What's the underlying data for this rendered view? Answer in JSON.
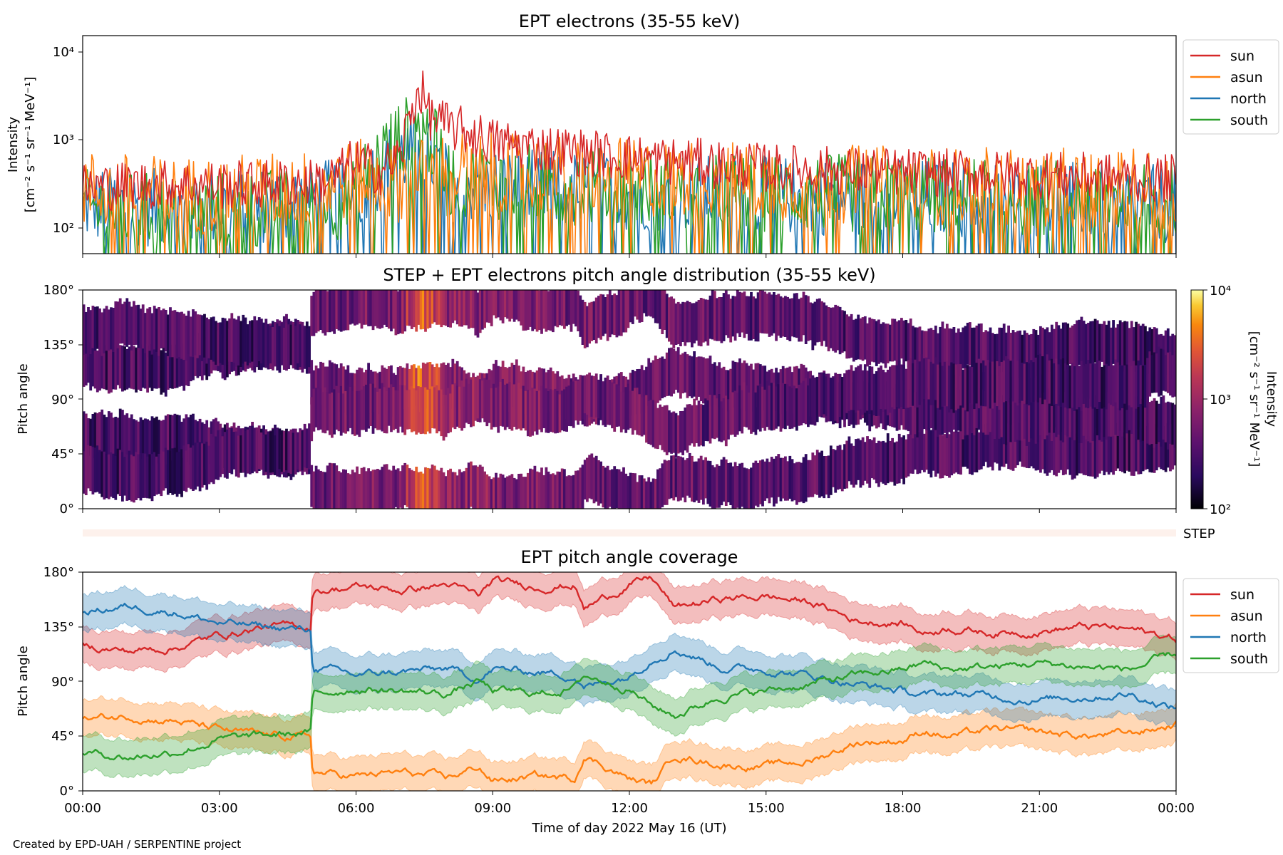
{
  "figure": {
    "credit": "Created by EPD-UAH / SERPENTINE project",
    "xlabel": "Time of day 2022 May 16 (UT)",
    "x_ticks": [
      "00:00",
      "03:00",
      "06:00",
      "09:00",
      "12:00",
      "15:00",
      "18:00",
      "21:00",
      "00:00"
    ]
  },
  "panel1": {
    "title": "EPT electrons (35-55 keV)",
    "ylabel_1": "Intensity",
    "ylabel_2": "[cm⁻² s⁻¹ sr⁻¹ MeV⁻¹]",
    "yticks": [
      "10²",
      "10³",
      "10⁴"
    ],
    "legend": [
      "sun",
      "asun",
      "north",
      "south"
    ]
  },
  "panel2": {
    "title": "STEP + EPT electrons pitch angle distribution (35-55 keV)",
    "ylabel": "Pitch angle",
    "yticks": [
      "0°",
      "45°",
      "90°",
      "135°",
      "180°"
    ],
    "colorbar_label_1": "Intensity",
    "colorbar_label_2": "[cm⁻² s⁻¹ sr⁻¹ MeV⁻¹]",
    "colorbar_ticks": [
      "10²",
      "10³",
      "10⁴"
    ],
    "step_label": "STEP"
  },
  "panel3": {
    "title": "EPT pitch angle coverage",
    "ylabel": "Pitch angle",
    "yticks": [
      "0°",
      "45°",
      "90°",
      "135°",
      "180°"
    ],
    "legend": [
      "sun",
      "asun",
      "north",
      "south"
    ]
  },
  "colors": {
    "sun": "#d62728",
    "asun": "#ff7f0e",
    "north": "#1f77b4",
    "south": "#2ca02c"
  },
  "chart_data": [
    {
      "type": "line",
      "title": "EPT electrons (35-55 keV)",
      "ylabel": "Intensity [cm⁻² s⁻¹ sr⁻¹ MeV⁻¹]",
      "xlabel": "Time of day 2022 May 16 (UT)",
      "yscale": "log",
      "ylim": [
        50,
        15000
      ],
      "xlim_hours": [
        0,
        24
      ],
      "legend_position": "outside-top-right",
      "series": [
        {
          "name": "sun",
          "color": "#d62728",
          "x_hours": [
            0,
            1,
            2,
            3,
            4,
            5,
            5.5,
            6,
            6.5,
            7,
            7.2,
            7.4,
            7.6,
            8,
            9,
            10,
            11,
            12,
            13,
            14,
            15,
            16,
            17,
            18,
            19,
            20,
            21,
            22,
            23,
            24
          ],
          "values": [
            300,
            320,
            330,
            320,
            330,
            340,
            380,
            600,
            450,
            700,
            2000,
            4000,
            2000,
            1500,
            1000,
            850,
            750,
            650,
            600,
            550,
            500,
            480,
            460,
            450,
            430,
            420,
            410,
            400,
            380,
            380
          ]
        },
        {
          "name": "asun",
          "color": "#ff7f0e",
          "x_hours": [
            0,
            2,
            4,
            5,
            6,
            7,
            8,
            10,
            12,
            14,
            16,
            18,
            20,
            22,
            24
          ],
          "values": [
            300,
            250,
            280,
            300,
            400,
            350,
            500,
            450,
            400,
            380,
            350,
            330,
            320,
            310,
            300
          ]
        },
        {
          "name": "north",
          "color": "#1f77b4",
          "x_hours": [
            0,
            2,
            4,
            6,
            7.4,
            8,
            10,
            12,
            14,
            16,
            18,
            20,
            22,
            24
          ],
          "values": [
            200,
            180,
            200,
            250,
            900,
            350,
            300,
            280,
            260,
            250,
            240,
            230,
            220,
            200
          ]
        },
        {
          "name": "south",
          "color": "#2ca02c",
          "x_hours": [
            0,
            2,
            4,
            6,
            7.4,
            8,
            10,
            12,
            14,
            16,
            18,
            20,
            22,
            24
          ],
          "values": [
            180,
            160,
            180,
            230,
            1500,
            400,
            350,
            300,
            280,
            270,
            260,
            250,
            240,
            220
          ]
        }
      ]
    },
    {
      "type": "heatmap",
      "title": "STEP + EPT electrons pitch angle distribution (35-55 keV)",
      "ylabel": "Pitch angle",
      "ylim": [
        0,
        180
      ],
      "xlim_hours": [
        0,
        24
      ],
      "colorscale": "inferno",
      "color_range": [
        100,
        10000
      ],
      "color_scale_type": "log",
      "colorbar_label": "Intensity [cm⁻² s⁻¹ sr⁻¹ MeV⁻¹]",
      "description_values_by_hour": {
        "x_hours": [
          0,
          5,
          5.1,
          7,
          7.4,
          8,
          11,
          16,
          24
        ],
        "typical_intensity": [
          300,
          300,
          450,
          600,
          3000,
          800,
          500,
          350,
          280
        ]
      }
    },
    {
      "type": "area",
      "title": "EPT pitch angle coverage",
      "ylabel": "Pitch angle",
      "xlabel": "Time of day 2022 May 16 (UT)",
      "ylim": [
        0,
        180
      ],
      "xlim_hours": [
        0,
        24
      ],
      "legend_position": "outside-top-right",
      "series": [
        {
          "name": "sun",
          "color": "#d62728",
          "x_hours": [
            0,
            1,
            2,
            3,
            4,
            5,
            5.05,
            6,
            7,
            8,
            8.7,
            9,
            10,
            10.8,
            11,
            12,
            12.5,
            13,
            14,
            15,
            16,
            17,
            18,
            18.5,
            19,
            20,
            21,
            22,
            23,
            24
          ],
          "values": [
            120,
            115,
            118,
            128,
            135,
            135,
            165,
            168,
            165,
            170,
            160,
            172,
            168,
            170,
            150,
            170,
            175,
            150,
            158,
            160,
            155,
            140,
            138,
            130,
            135,
            130,
            132,
            135,
            133,
            125
          ]
        },
        {
          "name": "asun",
          "color": "#ff7f0e",
          "x_hours": [
            0,
            1,
            2,
            3,
            4,
            5,
            5.05,
            6,
            7,
            8,
            8.7,
            9,
            10,
            10.8,
            11,
            12,
            12.5,
            13,
            14,
            15,
            16,
            17,
            18,
            18.5,
            19,
            20,
            21,
            22,
            23,
            24
          ],
          "values": [
            58,
            62,
            58,
            50,
            45,
            45,
            15,
            12,
            15,
            10,
            20,
            8,
            12,
            10,
            30,
            10,
            5,
            30,
            22,
            20,
            25,
            40,
            42,
            50,
            45,
            50,
            48,
            45,
            47,
            55
          ]
        },
        {
          "name": "north",
          "color": "#1f77b4",
          "x_hours": [
            0,
            1,
            2,
            3,
            4,
            5,
            5.05,
            6,
            7,
            8,
            8.7,
            9,
            10,
            10.8,
            11,
            12,
            12.5,
            13,
            14,
            15,
            16,
            17,
            18,
            18.5,
            19,
            20,
            21,
            22,
            23,
            24
          ],
          "values": [
            148,
            152,
            148,
            138,
            135,
            132,
            102,
            95,
            98,
            100,
            92,
            100,
            98,
            95,
            85,
            95,
            110,
            118,
            102,
            100,
            95,
            88,
            82,
            78,
            80,
            78,
            75,
            78,
            80,
            68
          ]
        },
        {
          "name": "south",
          "color": "#2ca02c",
          "x_hours": [
            0,
            1,
            2,
            3,
            4,
            5,
            5.05,
            6,
            7,
            8,
            8.7,
            9,
            10,
            10.8,
            11,
            12,
            12.5,
            13,
            14,
            15,
            16,
            17,
            18,
            18.5,
            19,
            20,
            21,
            22,
            23,
            24
          ],
          "values": [
            32,
            28,
            32,
            42,
            45,
            48,
            78,
            85,
            82,
            80,
            90,
            82,
            80,
            85,
            95,
            85,
            70,
            62,
            78,
            82,
            88,
            95,
            100,
            105,
            100,
            102,
            105,
            102,
            100,
            112
          ]
        }
      ]
    }
  ]
}
